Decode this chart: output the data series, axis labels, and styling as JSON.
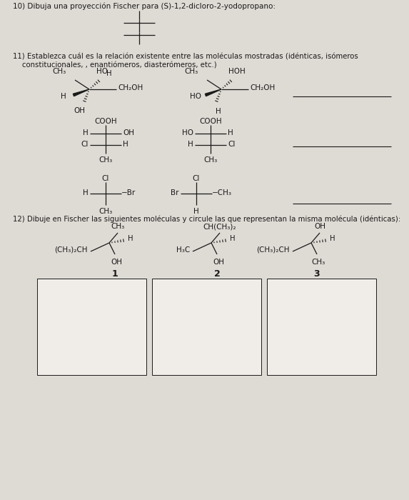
{
  "bg_color": "#dedad4",
  "text_color": "#1a1a1a",
  "box_color": "#f0ede8",
  "title10": "10) Dibuja una proyección Fischer para (S)-1,2-dicloro-2-yodopropano:",
  "title11a": "11) Establezca cuál es la relación existente entre las moléculas mostradas (idénticas, isómeros",
  "title11b": "    constitucionales, , enantiómeros, diasterómeros, etc.)",
  "title12": "12) Dibuje en Fischer las siguientes moléculas y circule las que representan la misma molécula (idénticas):"
}
